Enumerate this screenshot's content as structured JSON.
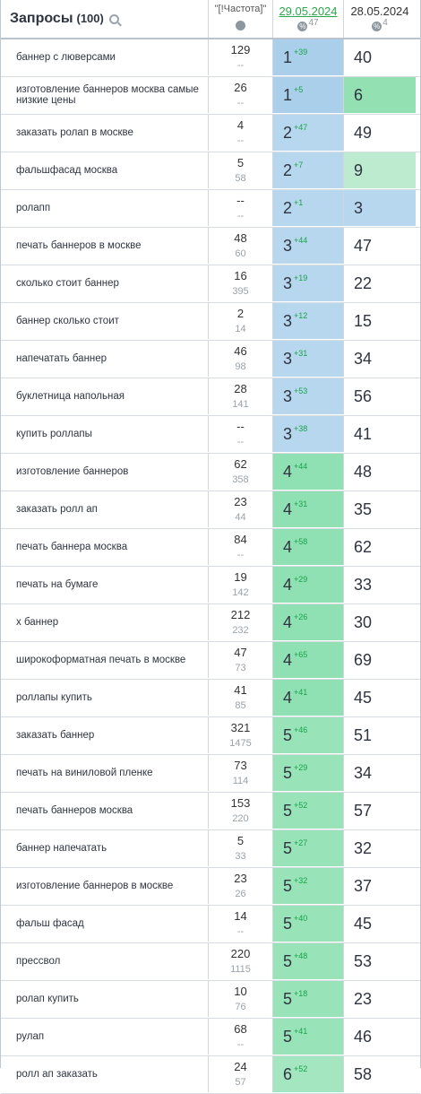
{
  "header": {
    "title": "Запросы",
    "count": "(100)",
    "freq_label": "\"[!Частота]\"",
    "date_active": "29.05.2024",
    "date_active_pct": "47",
    "date_prev": "28.05.2024",
    "date_prev_pct": "4",
    "pct_glyph": "%"
  },
  "rows": [
    {
      "query": "баннер с люверсами",
      "f1": "129",
      "f2": "--",
      "pos": "1",
      "delta": "+39",
      "prev": "40"
    },
    {
      "query": "изготовление баннеров москва самые низкие цены",
      "f1": "26",
      "f2": "--",
      "pos": "1",
      "delta": "+5",
      "prev": "6"
    },
    {
      "query": "заказать ролап в москве",
      "f1": "4",
      "f2": "--",
      "pos": "2",
      "delta": "+47",
      "prev": "49"
    },
    {
      "query": "фальшфасад москва",
      "f1": "5",
      "f2": "58",
      "pos": "2",
      "delta": "+7",
      "prev": "9"
    },
    {
      "query": "ролапп",
      "f1": "--",
      "f2": "--",
      "pos": "2",
      "delta": "+1",
      "prev": "3"
    },
    {
      "query": "печать баннеров в москве",
      "f1": "48",
      "f2": "60",
      "pos": "3",
      "delta": "+44",
      "prev": "47"
    },
    {
      "query": "сколько стоит баннер",
      "f1": "16",
      "f2": "395",
      "pos": "3",
      "delta": "+19",
      "prev": "22"
    },
    {
      "query": "баннер сколько стоит",
      "f1": "2",
      "f2": "14",
      "pos": "3",
      "delta": "+12",
      "prev": "15"
    },
    {
      "query": "напечатать баннер",
      "f1": "46",
      "f2": "98",
      "pos": "3",
      "delta": "+31",
      "prev": "34"
    },
    {
      "query": "буклетница напольная",
      "f1": "28",
      "f2": "141",
      "pos": "3",
      "delta": "+53",
      "prev": "56"
    },
    {
      "query": "купить роллапы",
      "f1": "--",
      "f2": "--",
      "pos": "3",
      "delta": "+38",
      "prev": "41"
    },
    {
      "query": "изготовление баннеров",
      "f1": "62",
      "f2": "358",
      "pos": "4",
      "delta": "+44",
      "prev": "48"
    },
    {
      "query": "заказать ролл ап",
      "f1": "23",
      "f2": "44",
      "pos": "4",
      "delta": "+31",
      "prev": "35"
    },
    {
      "query": "печать баннера москва",
      "f1": "84",
      "f2": "--",
      "pos": "4",
      "delta": "+58",
      "prev": "62"
    },
    {
      "query": "печать на бумаге",
      "f1": "19",
      "f2": "142",
      "pos": "4",
      "delta": "+29",
      "prev": "33"
    },
    {
      "query": "х баннер",
      "f1": "212",
      "f2": "232",
      "pos": "4",
      "delta": "+26",
      "prev": "30"
    },
    {
      "query": "широкоформатная печать в москве",
      "f1": "47",
      "f2": "73",
      "pos": "4",
      "delta": "+65",
      "prev": "69"
    },
    {
      "query": "роллапы купить",
      "f1": "41",
      "f2": "85",
      "pos": "4",
      "delta": "+41",
      "prev": "45"
    },
    {
      "query": "заказать баннер",
      "f1": "321",
      "f2": "1475",
      "pos": "5",
      "delta": "+46",
      "prev": "51"
    },
    {
      "query": "печать на виниловой пленке",
      "f1": "73",
      "f2": "114",
      "pos": "5",
      "delta": "+29",
      "prev": "34"
    },
    {
      "query": "печать баннеров москва",
      "f1": "153",
      "f2": "220",
      "pos": "5",
      "delta": "+52",
      "prev": "57"
    },
    {
      "query": "баннер напечатать",
      "f1": "5",
      "f2": "33",
      "pos": "5",
      "delta": "+27",
      "prev": "32"
    },
    {
      "query": "изготовление баннеров в москве",
      "f1": "23",
      "f2": "26",
      "pos": "5",
      "delta": "+32",
      "prev": "37"
    },
    {
      "query": "фальш фасад",
      "f1": "14",
      "f2": "--",
      "pos": "5",
      "delta": "+40",
      "prev": "45"
    },
    {
      "query": "прессвол",
      "f1": "220",
      "f2": "1115",
      "pos": "5",
      "delta": "+48",
      "prev": "53"
    },
    {
      "query": "ролап купить",
      "f1": "10",
      "f2": "76",
      "pos": "5",
      "delta": "+18",
      "prev": "23"
    },
    {
      "query": "рулап",
      "f1": "68",
      "f2": "--",
      "pos": "5",
      "delta": "+41",
      "prev": "46"
    },
    {
      "query": "ролл ап заказать",
      "f1": "24",
      "f2": "57",
      "pos": "6",
      "delta": "+52",
      "prev": "58"
    }
  ]
}
